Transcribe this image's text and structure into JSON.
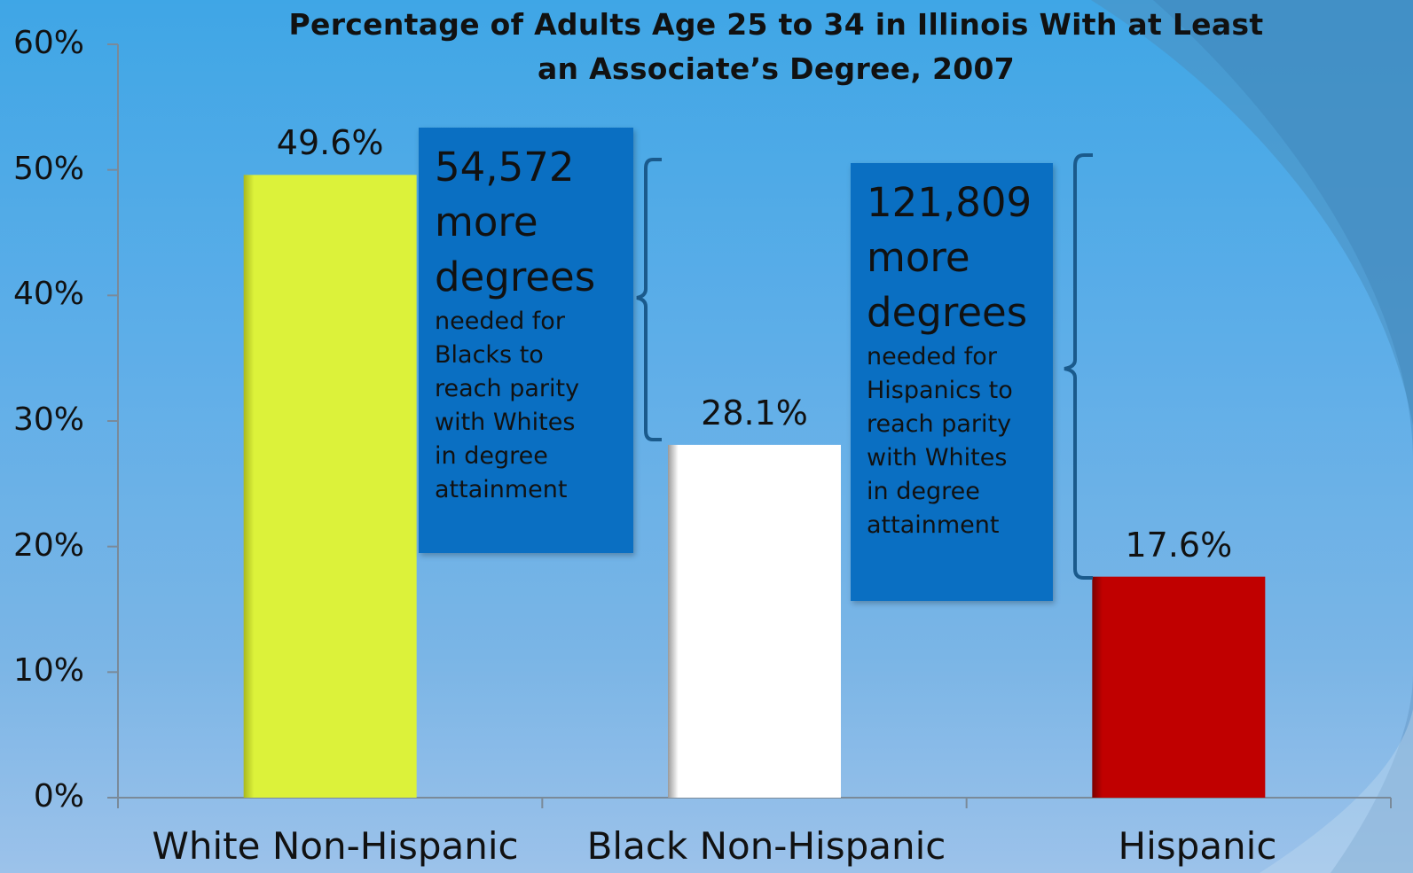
{
  "colors": {
    "white_bar": "#dcf23a",
    "black_bar": "#ffffff",
    "hispanic_bar": "#c00000",
    "callout_bg": "#0a6fc2",
    "bracket": "#1a5a8c"
  },
  "chart_data": {
    "type": "bar",
    "title_line1": "Percentage of Adults Age 25 to 34 in Illinois With at Least",
    "title_line2": "an Associate’s Degree, 2007",
    "categories": [
      "White Non-Hispanic",
      "Black Non-Hispanic",
      "Hispanic"
    ],
    "values": [
      49.6,
      28.1,
      17.6
    ],
    "data_labels": [
      "49.6%",
      "28.1%",
      "17.6%"
    ],
    "ylim": [
      0,
      60
    ],
    "yticks": [
      "0%",
      "10%",
      "20%",
      "30%",
      "40%",
      "50%",
      "60%"
    ],
    "grid": false,
    "annotations": [
      {
        "big_line1": "54,572",
        "big_line2": "more",
        "big_line3": "degrees",
        "small_line1": "needed for",
        "small_line2": "Blacks to",
        "small_line3": "reach parity",
        "small_line4": "with Whites",
        "small_line5": "in degree",
        "small_line6": "attainment"
      },
      {
        "big_line1": "121,809",
        "big_line2": "more",
        "big_line3": "degrees",
        "small_line1": "needed for",
        "small_line2": "Hispanics to",
        "small_line3": "reach parity",
        "small_line4": "with Whites",
        "small_line5": "in degree",
        "small_line6": "attainment"
      }
    ]
  }
}
